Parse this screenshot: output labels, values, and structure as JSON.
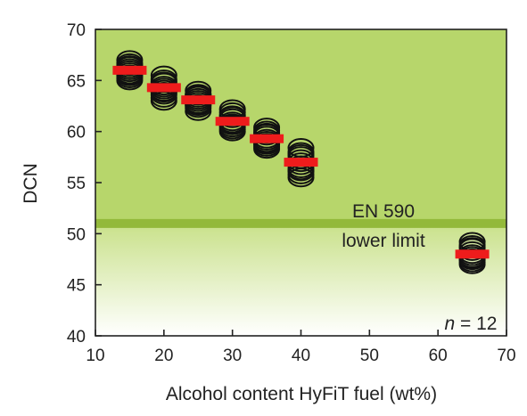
{
  "chart_data": {
    "type": "scatter",
    "xlabel": "Alcohol content HyFiT fuel (wt%)",
    "ylabel": "DCN",
    "xlim": [
      10,
      70
    ],
    "ylim": [
      40,
      70
    ],
    "xticks": [
      "10",
      "20",
      "30",
      "40",
      "50",
      "60",
      "70"
    ],
    "yticks": [
      "40",
      "45",
      "50",
      "55",
      "60",
      "65",
      "70"
    ],
    "limit_line": {
      "y": 51,
      "label_line1": "EN 590",
      "label_line2": "lower limit"
    },
    "n_label_italic": "n",
    "n_label_rest": " = 12",
    "groups": [
      {
        "x": 15,
        "mean": 66.0,
        "values": [
          67.0,
          66.7,
          66.4,
          66.2,
          66.0,
          65.8,
          65.6,
          65.4,
          65.2,
          65.0,
          66.5,
          65.5
        ]
      },
      {
        "x": 20,
        "mean": 64.3,
        "values": [
          65.5,
          65.1,
          64.8,
          64.5,
          64.3,
          64.1,
          63.9,
          63.6,
          63.3,
          63.0,
          64.9,
          63.8
        ]
      },
      {
        "x": 25,
        "mean": 63.1,
        "values": [
          64.0,
          63.7,
          63.5,
          63.3,
          63.1,
          62.9,
          62.7,
          62.5,
          62.3,
          62.0,
          63.6,
          62.6
        ]
      },
      {
        "x": 30,
        "mean": 61.0,
        "values": [
          62.2,
          61.9,
          61.6,
          61.3,
          61.0,
          60.8,
          60.6,
          60.4,
          60.2,
          60.0,
          61.5,
          60.7
        ]
      },
      {
        "x": 35,
        "mean": 59.3,
        "values": [
          60.4,
          60.1,
          59.8,
          59.6,
          59.3,
          59.1,
          58.9,
          58.7,
          58.5,
          58.3,
          59.9,
          58.8
        ]
      },
      {
        "x": 40,
        "mean": 57.0,
        "values": [
          58.4,
          58.0,
          57.6,
          57.3,
          57.0,
          56.7,
          56.4,
          56.1,
          55.8,
          55.5,
          57.8,
          56.2
        ]
      },
      {
        "x": 65,
        "mean": 48.0,
        "values": [
          49.2,
          48.9,
          48.6,
          48.3,
          48.0,
          47.8,
          47.6,
          47.4,
          47.2,
          47.0,
          48.7,
          47.5
        ]
      }
    ],
    "colors": {
      "upper_region": "#b7d66b",
      "limit_band": "#93b93a",
      "lower_gradient_top": "#c9e18a",
      "lower_gradient_bottom": "#ffffff",
      "marker": "#111111",
      "mean_bar": "#ee1c1c"
    },
    "grid": false
  }
}
